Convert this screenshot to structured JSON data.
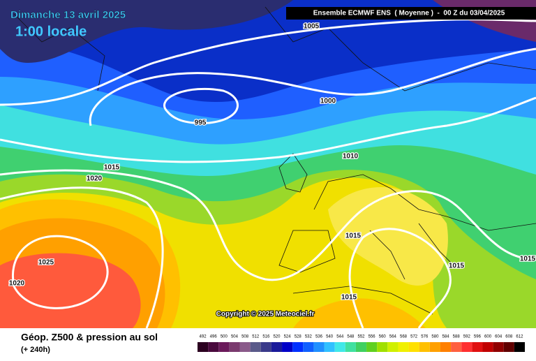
{
  "header": {
    "date": "Dimanche 13 avril 2025",
    "time": "1:00 locale",
    "model": "Ensemble ECMWF ENS  ( Moyenne )  -  00 Z du 03/04/2025"
  },
  "isobar_labels": [
    "1005",
    "1000",
    "995",
    "1010",
    "1015",
    "1020",
    "1015",
    "1025",
    "1020",
    "1015",
    "1015",
    "1015"
  ],
  "copyright": "Copyright © 2025 Meteociel.fr",
  "footer": {
    "title": "Géop. Z500 & pression au sol",
    "lead": "(+ 240h)"
  },
  "colorbar": {
    "values": [
      492,
      496,
      500,
      504,
      508,
      512,
      516,
      520,
      524,
      528,
      532,
      536,
      540,
      544,
      548,
      552,
      556,
      560,
      564,
      568,
      572,
      576,
      580,
      584,
      588,
      592,
      596,
      600,
      604,
      608,
      612
    ],
    "colors": [
      "#2b0020",
      "#4a0a3e",
      "#6b1a5b",
      "#7a3a6e",
      "#8a5a8a",
      "#5a5a8a",
      "#3a3a8a",
      "#1a1a9a",
      "#0000c8",
      "#0030ff",
      "#1060ff",
      "#2090ff",
      "#30c0ff",
      "#40e8e8",
      "#40e0a0",
      "#40d060",
      "#60d020",
      "#a0e000",
      "#d0f000",
      "#f0f000",
      "#ffe000",
      "#ffc000",
      "#ffa000",
      "#ff8000",
      "#ff6040",
      "#ff3030",
      "#e01010",
      "#c00000",
      "#900000",
      "#600000",
      "#000000"
    ]
  }
}
